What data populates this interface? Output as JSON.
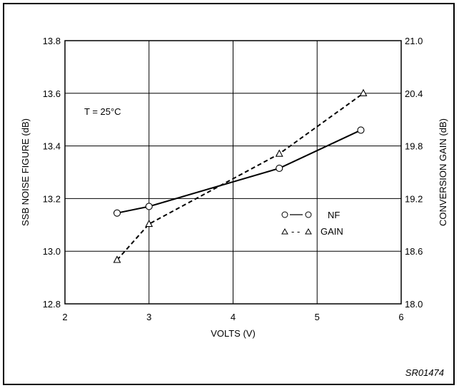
{
  "chart_data": {
    "type": "line",
    "title": "",
    "xlabel": "VOLTS (V)",
    "ylabel_left": "SSB NOISE FIGURE (dB)",
    "ylabel_right": "CONVERSION GAIN (dB)",
    "xlim": [
      2,
      6
    ],
    "ylim_left": [
      12.8,
      13.8
    ],
    "ylim_right": [
      18.0,
      21.0
    ],
    "x_ticks": [
      "2",
      "3",
      "4",
      "5",
      "6"
    ],
    "y_ticks_left": [
      "12.8",
      "13.0",
      "13.2",
      "13.4",
      "13.6",
      "13.8"
    ],
    "y_ticks_right": [
      "18.0",
      "18.6",
      "19.2",
      "19.8",
      "20.4",
      "21.0"
    ],
    "grid": true,
    "legend_position": "center-right",
    "annotation": "T = 25°C",
    "figure_id": "SR01474",
    "series": [
      {
        "name": "NF",
        "axis": "left",
        "marker": "circle",
        "line_style": "solid",
        "x": [
          2.62,
          3.0,
          4.55,
          5.52
        ],
        "y": [
          13.145,
          13.17,
          13.315,
          13.46
        ]
      },
      {
        "name": "GAIN",
        "axis": "right",
        "marker": "triangle",
        "line_style": "dashed",
        "x": [
          2.62,
          3.0,
          4.55,
          5.55
        ],
        "y": [
          18.5,
          18.91,
          19.71,
          20.4
        ]
      }
    ]
  }
}
